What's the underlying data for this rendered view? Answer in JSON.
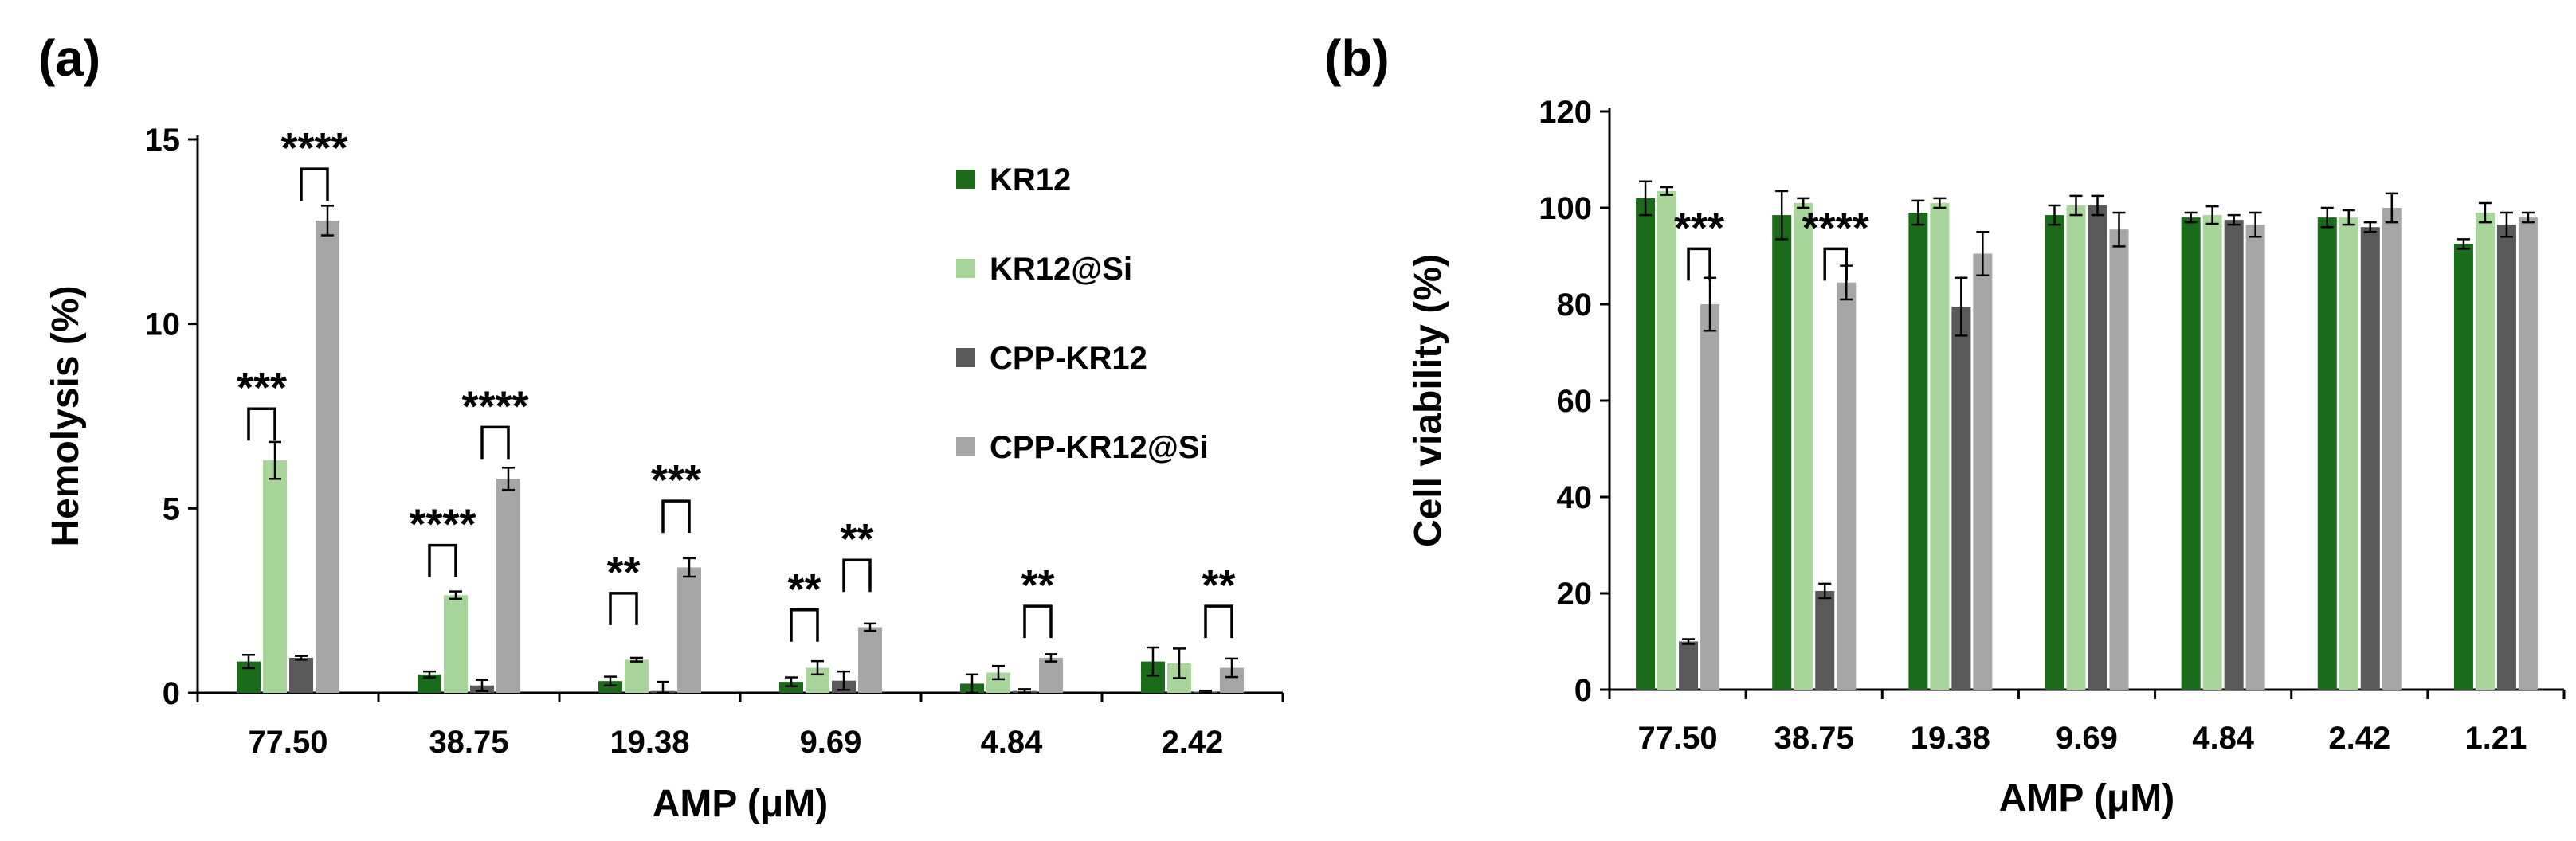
{
  "chart_data": [
    {
      "type": "bar",
      "panel_label": "(a)",
      "title": "",
      "xlabel": "AMP (μM)",
      "ylabel": "Hemolysis (%)",
      "ylim": [
        0,
        15
      ],
      "yticks": [
        0,
        5,
        10,
        15
      ],
      "categories": [
        "77.50",
        "38.75",
        "19.38",
        "9.69",
        "4.84",
        "2.42"
      ],
      "series": [
        {
          "name": "KR12",
          "color": "#1a6b1a",
          "values": [
            0.85,
            0.5,
            0.32,
            0.3,
            0.25,
            0.85
          ],
          "errors": [
            0.18,
            0.08,
            0.12,
            0.12,
            0.25,
            0.38
          ]
        },
        {
          "name": "KR12@Si",
          "color": "#a8d69a",
          "values": [
            6.3,
            2.65,
            0.9,
            0.68,
            0.55,
            0.8
          ],
          "errors": [
            0.5,
            0.1,
            0.05,
            0.18,
            0.18,
            0.4
          ]
        },
        {
          "name": "CPP-KR12",
          "color": "#595959",
          "values": [
            0.95,
            0.2,
            0.05,
            0.33,
            0.05,
            0.03
          ],
          "errors": [
            0.05,
            0.15,
            0.25,
            0.25,
            0.05,
            0.03
          ]
        },
        {
          "name": "CPP-KR12@Si",
          "color": "#a6a6a6",
          "values": [
            12.8,
            5.8,
            3.4,
            1.78,
            0.95,
            0.68
          ],
          "errors": [
            0.4,
            0.3,
            0.25,
            0.1,
            0.1,
            0.25
          ]
        }
      ],
      "legend": {
        "position": "right",
        "entries": [
          "KR12",
          "KR12@Si",
          "CPP-KR12",
          "CPP-KR12@Si"
        ]
      },
      "annotations": [
        {
          "text": "***",
          "category": "77.50",
          "from_series": 0,
          "to_series": 1,
          "y": 7.7
        },
        {
          "text": "****",
          "category": "77.50",
          "from_series": 2,
          "to_series": 3,
          "y": 14.2
        },
        {
          "text": "****",
          "category": "38.75",
          "from_series": 0,
          "to_series": 1,
          "y": 4.0
        },
        {
          "text": "****",
          "category": "38.75",
          "from_series": 2,
          "to_series": 3,
          "y": 7.2
        },
        {
          "text": "**",
          "category": "19.38",
          "from_series": 0,
          "to_series": 1,
          "y": 2.7
        },
        {
          "text": "***",
          "category": "19.38",
          "from_series": 2,
          "to_series": 3,
          "y": 5.2
        },
        {
          "text": "**",
          "category": "9.69",
          "from_series": 0,
          "to_series": 1,
          "y": 2.25
        },
        {
          "text": "**",
          "category": "9.69",
          "from_series": 2,
          "to_series": 3,
          "y": 3.6
        },
        {
          "text": "**",
          "category": "4.84",
          "from_series": 2,
          "to_series": 3,
          "y": 2.35
        },
        {
          "text": "**",
          "category": "2.42",
          "from_series": 2,
          "to_series": 3,
          "y": 2.35
        }
      ]
    },
    {
      "type": "bar",
      "panel_label": "(b)",
      "title": "",
      "xlabel": "AMP (μM)",
      "ylabel": "Cell viability (%)",
      "ylim": [
        0,
        120
      ],
      "yticks": [
        0,
        20,
        40,
        60,
        80,
        100,
        120
      ],
      "categories": [
        "77.50",
        "38.75",
        "19.38",
        "9.69",
        "4.84",
        "2.42",
        "1.21"
      ],
      "series": [
        {
          "name": "KR12",
          "color": "#1a6b1a",
          "values": [
            102,
            98.5,
            99,
            98.5,
            98,
            98,
            92.5
          ],
          "errors": [
            3.5,
            5,
            2.5,
            2,
            1,
            2,
            1
          ]
        },
        {
          "name": "KR12@Si",
          "color": "#a8d69a",
          "values": [
            103.5,
            101,
            101,
            100.5,
            98.5,
            98,
            99
          ],
          "errors": [
            0.8,
            1,
            1,
            2,
            1.8,
            1.5,
            2
          ]
        },
        {
          "name": "CPP-KR12",
          "color": "#595959",
          "values": [
            10,
            20.5,
            79.5,
            100.5,
            97.5,
            96,
            96.5
          ],
          "errors": [
            0.5,
            1.5,
            6,
            2,
            1,
            1,
            2.5
          ]
        },
        {
          "name": "CPP-KR12@Si",
          "color": "#a6a6a6",
          "values": [
            80,
            84.5,
            90.5,
            95.5,
            96.5,
            100,
            98
          ],
          "errors": [
            5.5,
            3.5,
            4.5,
            3.5,
            2.5,
            3,
            1
          ]
        }
      ],
      "annotations": [
        {
          "text": "***",
          "category": "77.50",
          "from_series": 2,
          "to_series": 3,
          "y": 91.5
        },
        {
          "text": "****",
          "category": "38.75",
          "from_series": 2,
          "to_series": 3,
          "y": 91.5
        }
      ]
    }
  ]
}
